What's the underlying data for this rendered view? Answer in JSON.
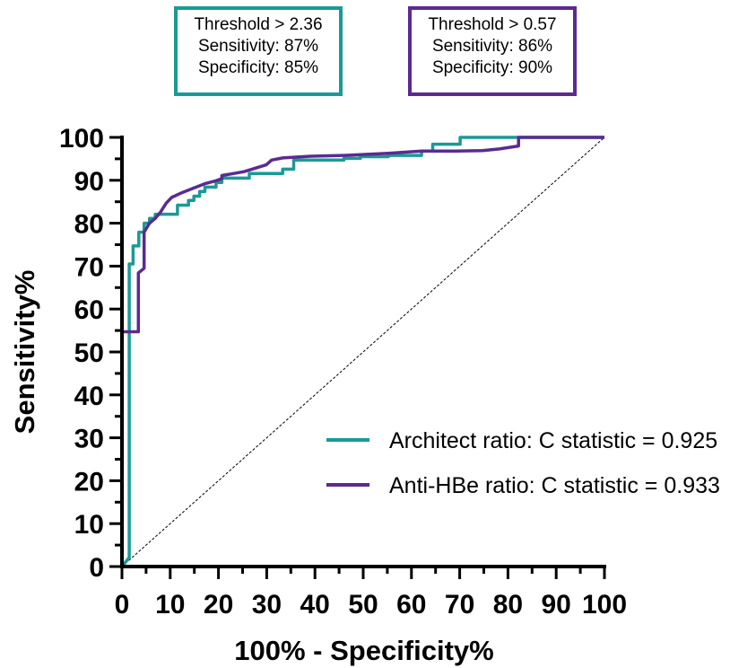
{
  "annotations": [
    {
      "color": "#1a9a96",
      "lines": [
        "Threshold > 2.36",
        "Sensitivity: 87%",
        "Specificity: 85%"
      ]
    },
    {
      "color": "#5b2a91",
      "lines": [
        "Threshold > 0.57",
        "Sensitivity: 86%",
        "Specificity: 90%"
      ]
    }
  ],
  "chart_data": {
    "type": "line",
    "title": "",
    "xlabel": "100% - Specificity%",
    "ylabel": "Sensitivity%",
    "xlim": [
      0,
      100
    ],
    "ylim": [
      0,
      100
    ],
    "xticks": [
      0,
      10,
      20,
      30,
      40,
      50,
      60,
      70,
      80,
      90,
      100
    ],
    "yticks": [
      0,
      10,
      20,
      30,
      40,
      50,
      60,
      70,
      80,
      90,
      100
    ],
    "xtick_labels": [
      "0",
      "10",
      "20",
      "30",
      "40",
      "50",
      "60",
      "70",
      "80",
      "90",
      "100"
    ],
    "ytick_labels": [
      "0",
      "10",
      "20",
      "30",
      "40",
      "50",
      "60",
      "70",
      "80",
      "90",
      "100"
    ],
    "grid": false,
    "legend_position": "bottom-right",
    "reference_line": {
      "x": [
        0,
        100
      ],
      "y": [
        0,
        100
      ],
      "style": "dashed",
      "color": "#000000"
    },
    "series": [
      {
        "name": "Architect ratio: C statistic = 0.925",
        "color": "#1a9a96",
        "x": [
          0,
          1.5,
          1.5,
          1.5,
          2.3,
          2.3,
          3.5,
          3.5,
          4.6,
          4.6,
          5.7,
          5.7,
          6.9,
          6.9,
          11.5,
          11.5,
          13.8,
          13.8,
          14.9,
          14.9,
          16.1,
          16.1,
          17.2,
          17.2,
          19.5,
          19.5,
          20.7,
          20.7,
          26.4,
          26.4,
          33.3,
          33.3,
          35.6,
          35.6,
          46,
          46,
          49.4,
          49.4,
          55.2,
          55.2,
          62.1,
          62.1,
          64.4,
          64.4,
          70.1,
          70.1,
          100
        ],
        "y": [
          0,
          2.1,
          54.7,
          70.5,
          70.5,
          74.7,
          74.7,
          77.9,
          77.9,
          80,
          80,
          81.1,
          81.1,
          82.1,
          82.1,
          84.2,
          84.2,
          85.3,
          85.3,
          86.3,
          86.3,
          87.4,
          87.4,
          88.4,
          88.4,
          89.5,
          89.5,
          90.5,
          90.5,
          91.6,
          91.6,
          92.6,
          92.6,
          94.7,
          94.7,
          95.1,
          95.1,
          95.5,
          95.5,
          95.8,
          95.8,
          96.8,
          96.8,
          98.4,
          98.4,
          100,
          100
        ]
      },
      {
        "name": "Anti-HBe ratio: C statistic = 0.933",
        "color": "#5b2a91",
        "x": [
          0,
          0,
          3.4,
          3.4,
          4.6,
          4.6,
          5.7,
          6.9,
          8.0,
          9.2,
          10.3,
          12.6,
          14.9,
          17.2,
          19.5,
          20.7,
          20.7,
          25.3,
          29.9,
          31.0,
          33.3,
          39.1,
          46.0,
          55.2,
          62.1,
          69.0,
          74.7,
          78.2,
          82.2,
          82.2,
          100
        ],
        "y": [
          0,
          54.7,
          54.7,
          68.4,
          69.5,
          77.9,
          80,
          81.1,
          82.6,
          84.7,
          86.0,
          87.2,
          88.2,
          89.2,
          89.9,
          90.4,
          91.1,
          92.0,
          93.6,
          94.7,
          95.2,
          95.6,
          95.8,
          96.3,
          96.8,
          96.8,
          96.9,
          97.3,
          98.0,
          100,
          100
        ]
      }
    ]
  }
}
